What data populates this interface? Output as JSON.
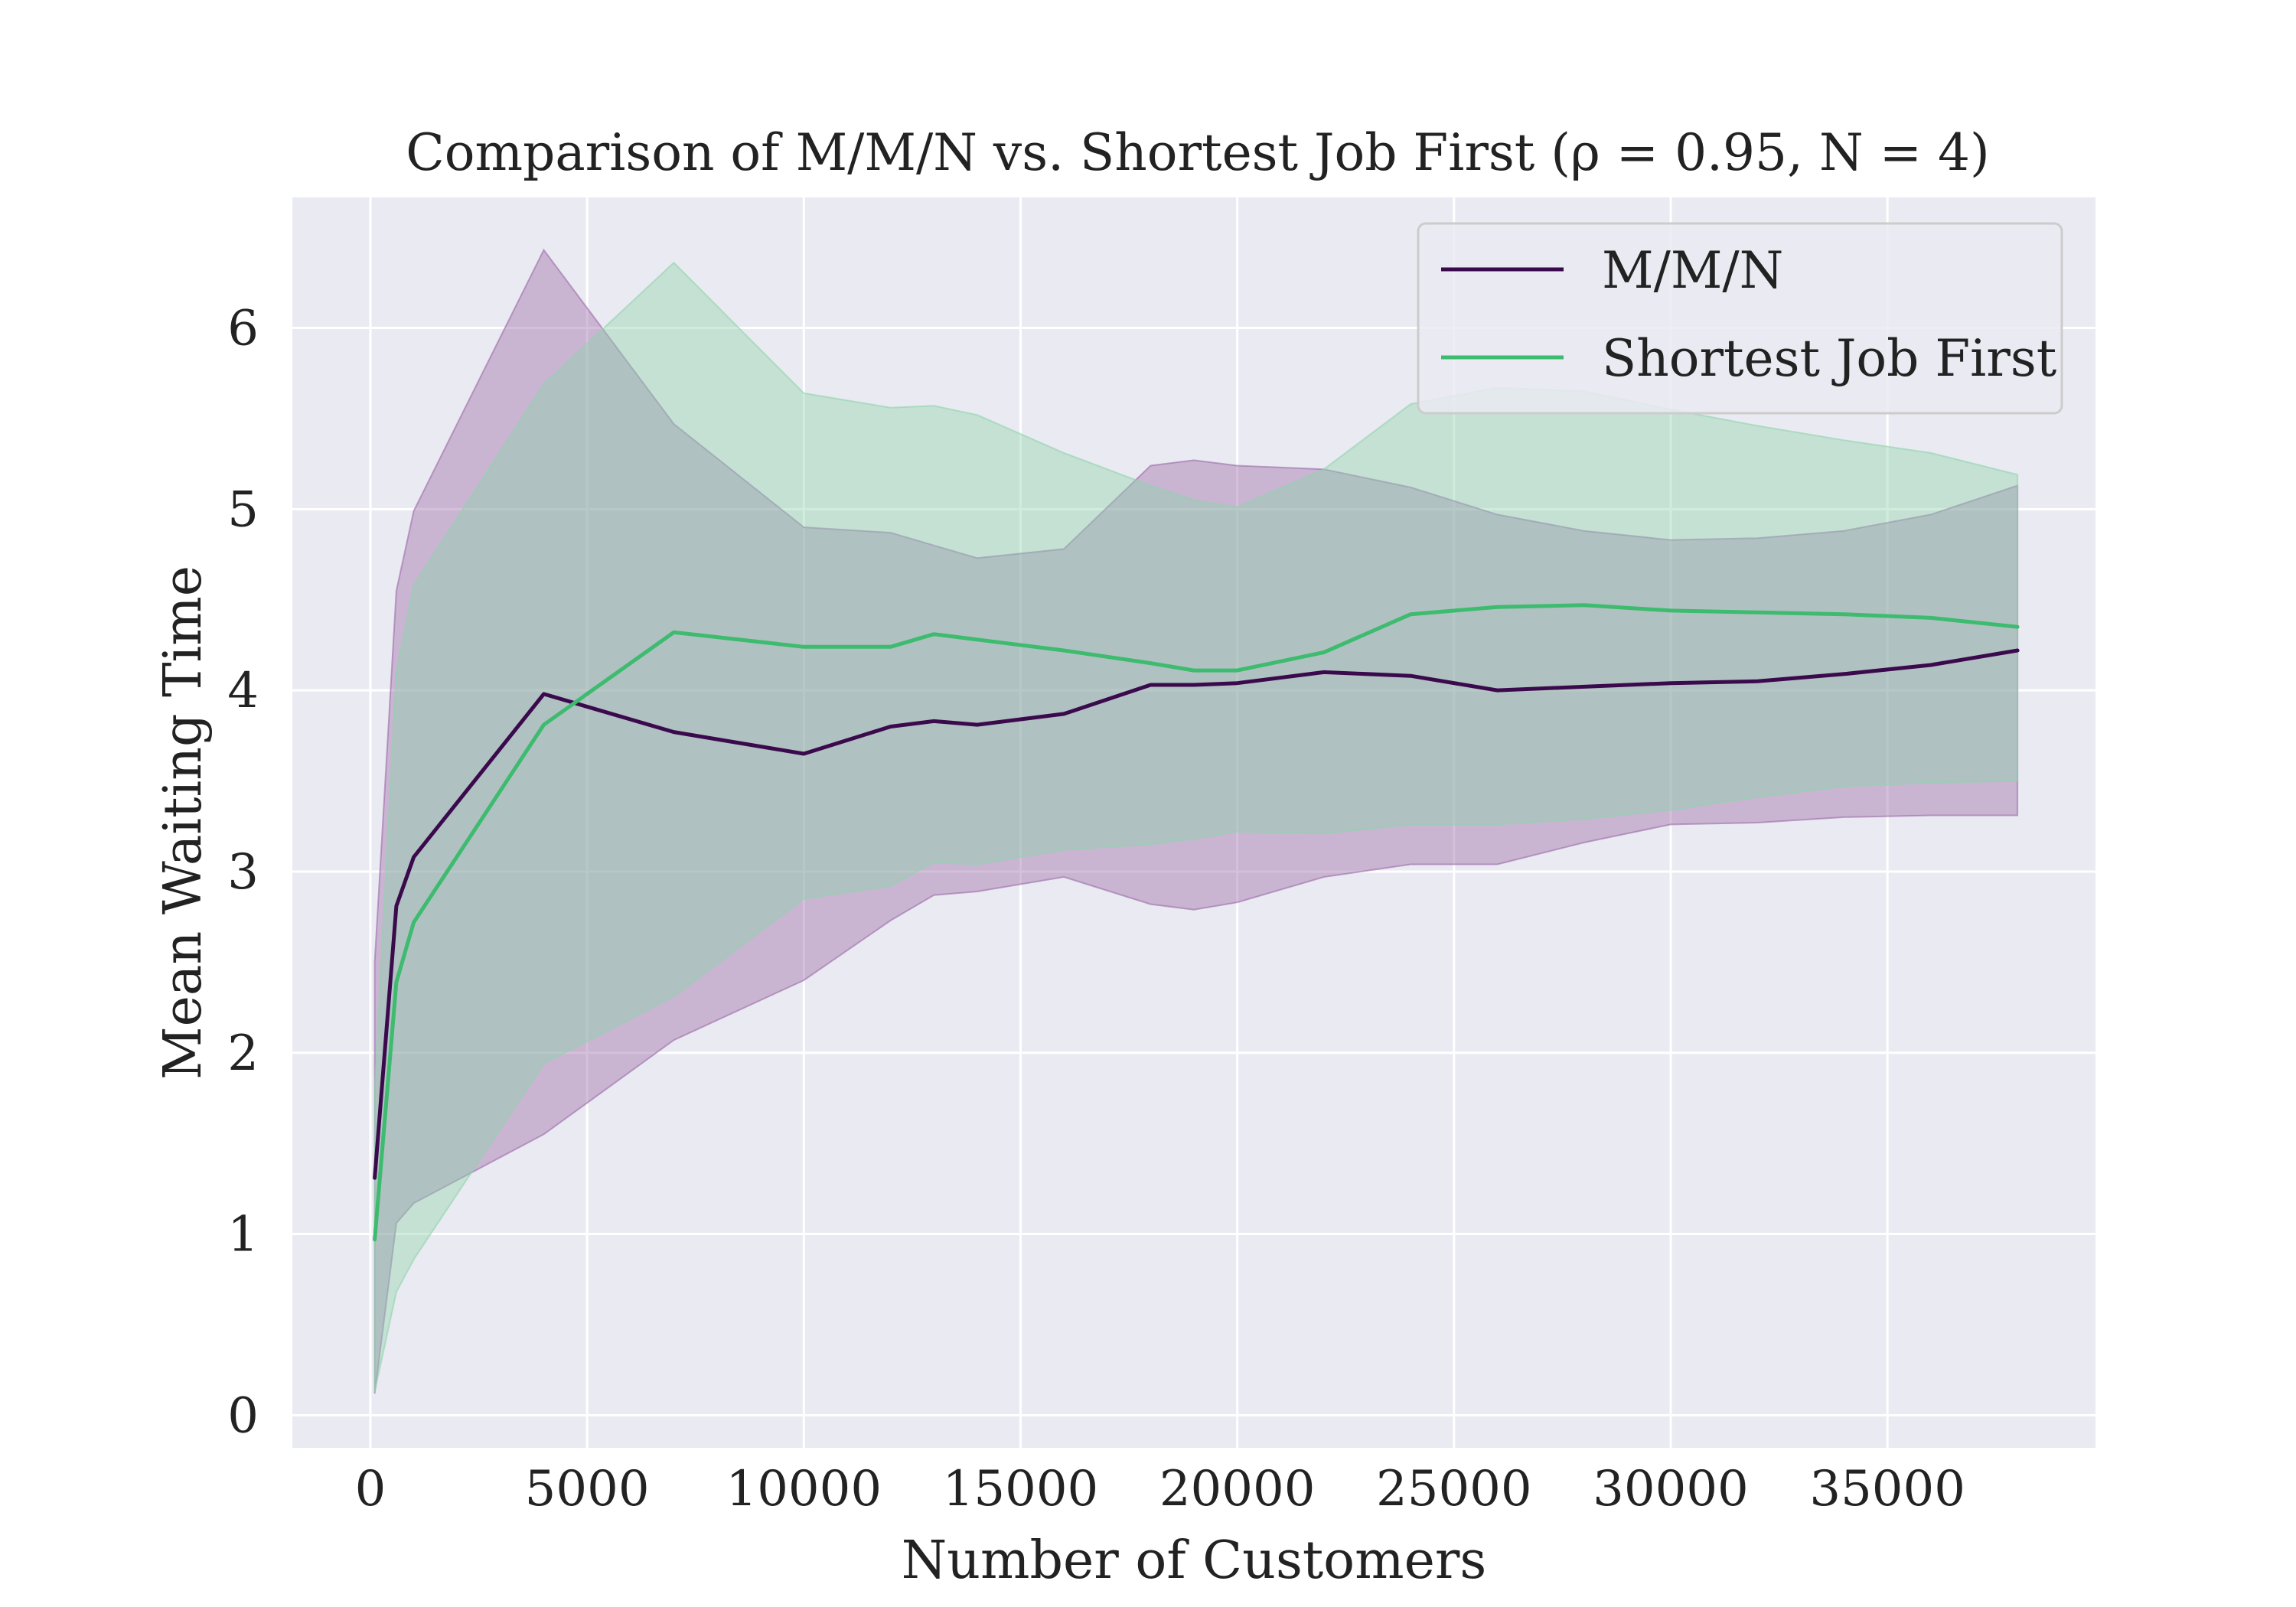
{
  "chart_data": {
    "type": "line",
    "title": "Comparison of M/M/N vs. Shortest Job First (ρ = 0.95, N = 4)",
    "xlabel": "Number of Customers",
    "ylabel": "Mean Waiting Time",
    "xlim": [
      -1800,
      39800
    ],
    "ylim": [
      -0.18,
      6.72
    ],
    "xticks": [
      0,
      5000,
      10000,
      15000,
      20000,
      25000,
      30000,
      35000
    ],
    "yticks": [
      0,
      1,
      2,
      3,
      4,
      5,
      6
    ],
    "grid": true,
    "legend_position": "top-right",
    "series": [
      {
        "name": "M/M/N",
        "color": "#3b0a4d",
        "band_color": "#9b6aa8",
        "x": [
          100,
          600,
          1000,
          4000,
          7000,
          10000,
          12000,
          13000,
          14000,
          16000,
          18000,
          19000,
          20000,
          22000,
          24000,
          26000,
          28000,
          30000,
          32000,
          34000,
          36000,
          38000
        ],
        "y": [
          1.31,
          2.81,
          3.08,
          3.98,
          3.77,
          3.65,
          3.8,
          3.83,
          3.81,
          3.87,
          4.03,
          4.03,
          4.04,
          4.1,
          4.08,
          4.0,
          4.02,
          4.04,
          4.05,
          4.09,
          4.14,
          4.22
        ],
        "upper": [
          2.5,
          4.55,
          4.99,
          6.43,
          5.47,
          4.9,
          4.87,
          4.8,
          4.73,
          4.78,
          5.24,
          5.27,
          5.24,
          5.22,
          5.12,
          4.97,
          4.88,
          4.83,
          4.84,
          4.88,
          4.97,
          5.13
        ],
        "lower": [
          0.12,
          1.06,
          1.17,
          1.55,
          2.07,
          2.4,
          2.73,
          2.87,
          2.89,
          2.97,
          2.82,
          2.79,
          2.83,
          2.97,
          3.04,
          3.04,
          3.16,
          3.26,
          3.27,
          3.3,
          3.31,
          3.31
        ]
      },
      {
        "name": "Shortest Job First",
        "color": "#3dbb6e",
        "band_color": "#8fd4ac",
        "x": [
          100,
          600,
          1000,
          4000,
          7000,
          10000,
          12000,
          13000,
          14000,
          16000,
          18000,
          19000,
          20000,
          22000,
          24000,
          26000,
          28000,
          30000,
          32000,
          34000,
          36000,
          38000
        ],
        "y": [
          0.97,
          2.39,
          2.72,
          3.81,
          4.32,
          4.24,
          4.24,
          4.31,
          4.28,
          4.22,
          4.15,
          4.11,
          4.11,
          4.21,
          4.42,
          4.46,
          4.47,
          4.44,
          4.43,
          4.42,
          4.4,
          4.35
        ],
        "upper": [
          1.8,
          4.1,
          4.58,
          5.69,
          6.36,
          5.64,
          5.56,
          5.57,
          5.52,
          5.31,
          5.13,
          5.05,
          5.01,
          5.22,
          5.58,
          5.67,
          5.65,
          5.55,
          5.46,
          5.38,
          5.31,
          5.19
        ],
        "lower": [
          0.13,
          0.68,
          0.86,
          1.94,
          2.31,
          2.85,
          2.92,
          3.05,
          3.04,
          3.12,
          3.15,
          3.18,
          3.22,
          3.21,
          3.26,
          3.26,
          3.29,
          3.34,
          3.41,
          3.47,
          3.49,
          3.5
        ]
      }
    ]
  }
}
